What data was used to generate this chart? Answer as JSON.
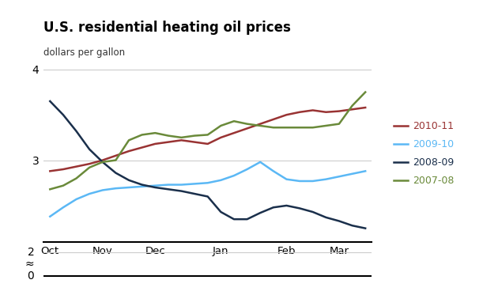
{
  "title": "U.S. residential heating oil prices",
  "ylabel": "dollars per gallon",
  "x_labels": [
    "Oct",
    "Nov",
    "Dec",
    "Jan",
    "Feb",
    "Mar"
  ],
  "series": {
    "2010-11": {
      "color": "#993333",
      "y": [
        2.88,
        2.9,
        2.93,
        2.96,
        3.0,
        3.05,
        3.1,
        3.14,
        3.18,
        3.2,
        3.22,
        3.2,
        3.18,
        3.25,
        3.3,
        3.35,
        3.4,
        3.45,
        3.5,
        3.53,
        3.55,
        3.53,
        3.54,
        3.56,
        3.58
      ]
    },
    "2009-10": {
      "color": "#5bb8f5",
      "y": [
        2.38,
        2.48,
        2.57,
        2.63,
        2.67,
        2.69,
        2.7,
        2.71,
        2.72,
        2.73,
        2.73,
        2.74,
        2.75,
        2.78,
        2.83,
        2.9,
        2.98,
        2.88,
        2.79,
        2.77,
        2.77,
        2.79,
        2.82,
        2.85,
        2.88
      ]
    },
    "2008-09": {
      "color": "#1a2f4b",
      "y": [
        3.65,
        3.5,
        3.32,
        3.12,
        2.98,
        2.86,
        2.78,
        2.73,
        2.7,
        2.68,
        2.66,
        2.63,
        2.6,
        2.43,
        2.35,
        2.35,
        2.42,
        2.48,
        2.5,
        2.47,
        2.43,
        2.37,
        2.33,
        2.28,
        2.25
      ]
    },
    "2007-08": {
      "color": "#6a8a3a",
      "y": [
        2.68,
        2.72,
        2.8,
        2.92,
        2.98,
        3.0,
        3.22,
        3.28,
        3.3,
        3.27,
        3.25,
        3.27,
        3.28,
        3.38,
        3.43,
        3.4,
        3.38,
        3.36,
        3.36,
        3.36,
        3.36,
        3.38,
        3.4,
        3.6,
        3.75
      ]
    }
  },
  "legend_order": [
    "2010-11",
    "2009-10",
    "2008-09",
    "2007-08"
  ],
  "background_color": "#ffffff",
  "grid_color": "#cccccc",
  "plot_ylim": [
    2.1,
    4.05
  ],
  "plot_yticks": [
    3.0,
    4.0
  ],
  "ytick_labels_full": [
    "0",
    "≈",
    "2",
    "3",
    "4"
  ],
  "ytick_vals_full": [
    0,
    1,
    2,
    3,
    4
  ]
}
